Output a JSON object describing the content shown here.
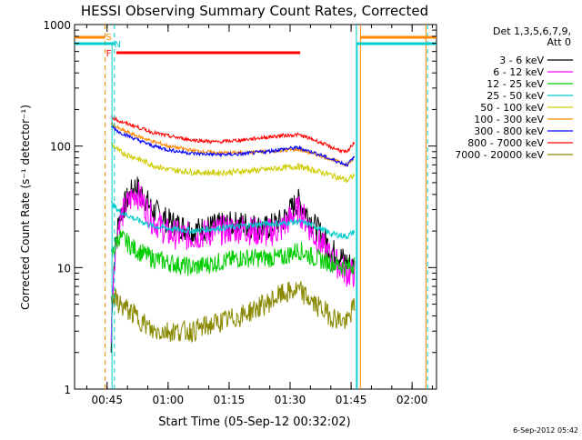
{
  "chart_data": {
    "type": "line",
    "title": "HESSI Observing Summary Count Rates, Corrected",
    "xlabel": "Start Time (05-Sep-12 00:32:02)",
    "ylabel": "Corrected Count Rate (s⁻¹ detector⁻¹)",
    "y_scale": "log",
    "ylim": [
      1,
      1000
    ],
    "xlim_min": [
      37,
      99
    ],
    "x_ticks": [
      {
        "min": 45,
        "label": "00:45"
      },
      {
        "min": 60,
        "label": "01:00"
      },
      {
        "min": 75,
        "label": "01:15"
      },
      {
        "min": 90,
        "label": "01:30"
      },
      {
        "min": 105,
        "label": "01:45"
      },
      {
        "min": 120,
        "label": "02:00"
      }
    ],
    "y_ticks": [
      {
        "value": 1,
        "label": "1"
      },
      {
        "value": 10,
        "label": "10"
      },
      {
        "value": 100,
        "label": "100"
      },
      {
        "value": 1000,
        "label": "1000"
      }
    ],
    "grid": false,
    "legend": {
      "header": [
        "Det 1,3,5,6,7,9,",
        "Att 0"
      ],
      "placement": "right"
    },
    "x": [
      46,
      48,
      52,
      56,
      60,
      66,
      72,
      78,
      84,
      88,
      92,
      96,
      100,
      104,
      106
    ],
    "series": [
      {
        "name": "3 - 6 keV",
        "color": "#000000",
        "values": [
          2,
          26,
          47,
          30,
          24,
          20,
          22,
          23,
          21,
          24,
          35,
          22,
          14,
          11,
          10
        ]
      },
      {
        "name": "6 - 12 keV",
        "color": "#ff00ff",
        "values": [
          3,
          24,
          42,
          25,
          19,
          18,
          20,
          21,
          19,
          21,
          30,
          18,
          12,
          9,
          9
        ]
      },
      {
        "name": "12 - 25 keV",
        "color": "#00cc00",
        "values": [
          12,
          18,
          14,
          12,
          11,
          10,
          11,
          12,
          12,
          12,
          14,
          12,
          11,
          10,
          11
        ]
      },
      {
        "name": "25 - 50 keV",
        "color": "#00cccc",
        "values": [
          34,
          29,
          25,
          22,
          21,
          20,
          21,
          22,
          23,
          23,
          24,
          22,
          19,
          18,
          20
        ]
      },
      {
        "name": "50 - 100 keV",
        "color": "#cccc00",
        "values": [
          104,
          90,
          80,
          70,
          64,
          61,
          60,
          62,
          64,
          66,
          68,
          63,
          58,
          52,
          58
        ]
      },
      {
        "name": "100 - 300 keV",
        "color": "#ff8800",
        "values": [
          154,
          138,
          122,
          110,
          100,
          92,
          88,
          88,
          90,
          92,
          94,
          86,
          78,
          70,
          80
        ]
      },
      {
        "name": "300 - 800 keV",
        "color": "#0000ff",
        "values": [
          146,
          130,
          114,
          101,
          93,
          87,
          85,
          86,
          90,
          94,
          97,
          88,
          78,
          70,
          82
        ]
      },
      {
        "name": "800 - 7000 keV",
        "color": "#ff0000",
        "values": [
          176,
          160,
          145,
          130,
          121,
          112,
          108,
          112,
          118,
          122,
          124,
          112,
          98,
          88,
          110
        ]
      },
      {
        "name": "7000 - 20000 keV",
        "color": "#888800",
        "values": [
          6,
          5,
          4,
          3,
          3,
          3,
          3.5,
          4,
          5,
          6,
          6.5,
          5,
          4,
          3.5,
          5
        ]
      }
    ],
    "flags": [
      {
        "label": "S",
        "color": "#ff8800"
      },
      {
        "label": "N",
        "color": "#00cccc"
      },
      {
        "label": "F",
        "color": "#ff0000"
      }
    ],
    "footer_timestamp": "6-Sep-2012 05:42"
  }
}
